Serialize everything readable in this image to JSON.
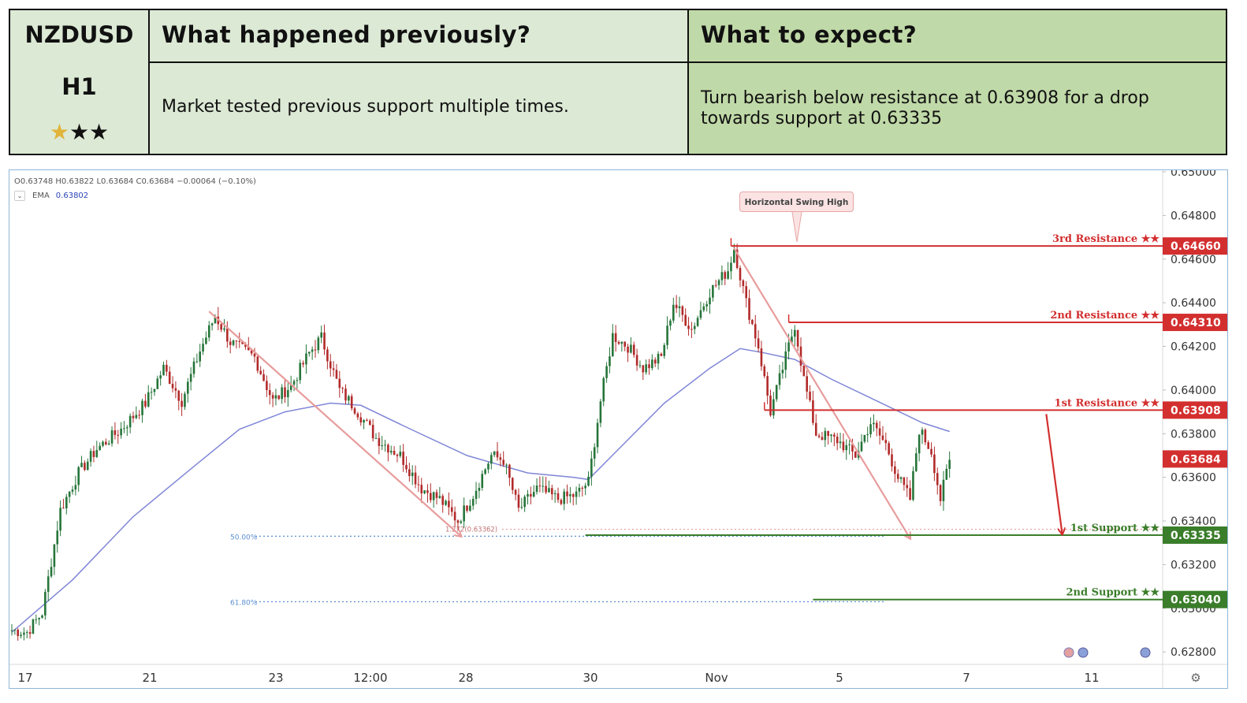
{
  "header": {
    "pair": "NZDUSD",
    "timeframe": "H1",
    "rating": {
      "filled": 1,
      "total": 3
    },
    "previous_title": "What happened previously?",
    "expect_title": "What to expect?",
    "previous_text": "Market tested previous support multiple times.",
    "expect_text": "Turn bearish below resistance at 0.63908 for a drop towards support at 0.63335"
  },
  "legend": {
    "ohlc": "O0.63748 H0.63822 L0.63684 C0.63684 −0.00064 (−0.10%)",
    "ema_label": "EMA",
    "ema_value": "0.63802"
  },
  "annotation": {
    "swing_high": "Horizontal Swing High"
  },
  "colors": {
    "bull": "#26753a",
    "bear": "#b22a2a",
    "ema": "#7f86d6",
    "resistance": "#d32f2f",
    "support": "#3a7d2a",
    "projection": "#e89c9c",
    "fib": "#5b8fd0"
  },
  "chart_data": {
    "type": "candlestick",
    "ylim": [
      0.6275,
      0.65
    ],
    "y_ticks": [
      "0.65000",
      "0.64800",
      "0.64600",
      "0.64400",
      "0.64200",
      "0.64000",
      "0.63800",
      "0.63600",
      "0.63400",
      "0.63200",
      "0.63000",
      "0.62800"
    ],
    "x_ticks": [
      "17",
      "21",
      "23",
      "12:00",
      "28",
      "30",
      "Nov",
      "5",
      "7",
      "11"
    ],
    "x_range_index": [
      0,
      370
    ],
    "last_price": "0.63684",
    "ema_period_values": "EMA (blue line)",
    "levels": [
      {
        "name": "3rd Resistance",
        "stars": "★★",
        "price": 0.6466,
        "label": "0.64660",
        "kind": "resistance",
        "from_index": 237
      },
      {
        "name": "2nd Resistance",
        "stars": "★★",
        "price": 0.6431,
        "label": "0.64310",
        "kind": "resistance",
        "from_index": 256
      },
      {
        "name": "1st Resistance",
        "stars": "★★",
        "price": 0.63908,
        "label": "0.63908",
        "kind": "resistance",
        "from_index": 248
      },
      {
        "name": "1st Support",
        "stars": "★★",
        "price": 0.63335,
        "label": "0.63335",
        "kind": "support",
        "from_index": 189
      },
      {
        "name": "2nd Support",
        "stars": "★★",
        "price": 0.6304,
        "label": "0.63040",
        "kind": "support",
        "from_index": 264
      }
    ],
    "fib_levels": [
      {
        "label": "50.00%",
        "price": 0.6333
      },
      {
        "label": "61.80%",
        "price": 0.6303
      }
    ],
    "fib_ext_label": "1.272(0.63362)",
    "anchors": [
      [
        0,
        0.629
      ],
      [
        5,
        0.6289
      ],
      [
        10,
        0.6298
      ],
      [
        16,
        0.6345
      ],
      [
        22,
        0.6362
      ],
      [
        28,
        0.6373
      ],
      [
        36,
        0.6382
      ],
      [
        44,
        0.6394
      ],
      [
        50,
        0.641
      ],
      [
        56,
        0.6395
      ],
      [
        62,
        0.6418
      ],
      [
        67,
        0.6434
      ],
      [
        72,
        0.6422
      ],
      [
        80,
        0.6415
      ],
      [
        86,
        0.6395
      ],
      [
        92,
        0.6402
      ],
      [
        98,
        0.6417
      ],
      [
        102,
        0.6424
      ],
      [
        108,
        0.64
      ],
      [
        113,
        0.6392
      ],
      [
        120,
        0.6378
      ],
      [
        128,
        0.637
      ],
      [
        135,
        0.6355
      ],
      [
        141,
        0.635
      ],
      [
        147,
        0.634
      ],
      [
        152,
        0.6352
      ],
      [
        158,
        0.637
      ],
      [
        162,
        0.6368
      ],
      [
        167,
        0.6345
      ],
      [
        173,
        0.6355
      ],
      [
        180,
        0.635
      ],
      [
        186,
        0.6352
      ],
      [
        190,
        0.6358
      ],
      [
        194,
        0.6395
      ],
      [
        198,
        0.6425
      ],
      [
        203,
        0.642
      ],
      [
        208,
        0.641
      ],
      [
        214,
        0.6415
      ],
      [
        218,
        0.644
      ],
      [
        224,
        0.6428
      ],
      [
        230,
        0.6445
      ],
      [
        236,
        0.6455
      ],
      [
        238,
        0.6465
      ],
      [
        242,
        0.644
      ],
      [
        246,
        0.642
      ],
      [
        250,
        0.639
      ],
      [
        255,
        0.6415
      ],
      [
        258,
        0.643
      ],
      [
        261,
        0.6405
      ],
      [
        265,
        0.638
      ],
      [
        272,
        0.6377
      ],
      [
        278,
        0.637
      ],
      [
        283,
        0.6385
      ],
      [
        288,
        0.6375
      ],
      [
        292,
        0.636
      ],
      [
        296,
        0.635
      ],
      [
        299,
        0.6382
      ],
      [
        303,
        0.6372
      ],
      [
        306,
        0.635
      ],
      [
        309,
        0.6368
      ]
    ],
    "ema_points": [
      [
        0,
        0.6289
      ],
      [
        20,
        0.6313
      ],
      [
        40,
        0.6342
      ],
      [
        60,
        0.6365
      ],
      [
        75,
        0.6382
      ],
      [
        90,
        0.639
      ],
      [
        105,
        0.6394
      ],
      [
        115,
        0.6393
      ],
      [
        130,
        0.6383
      ],
      [
        150,
        0.637
      ],
      [
        170,
        0.6362
      ],
      [
        185,
        0.636
      ],
      [
        190,
        0.6359
      ],
      [
        200,
        0.6373
      ],
      [
        215,
        0.6394
      ],
      [
        230,
        0.641
      ],
      [
        240,
        0.6419
      ],
      [
        248,
        0.6417
      ],
      [
        258,
        0.6414
      ],
      [
        270,
        0.6405
      ],
      [
        285,
        0.6395
      ],
      [
        300,
        0.6385
      ],
      [
        309,
        0.6381
      ]
    ],
    "projections": [
      {
        "from": [
          65,
          0.6436
        ],
        "to": [
          148,
          0.6333
        ]
      },
      {
        "from": [
          238,
          0.6465
        ],
        "to": [
          296,
          0.6332
        ]
      }
    ],
    "expected_arrow": {
      "from": [
        311,
        0.6389
      ],
      "to": [
        316,
        0.6334
      ]
    }
  }
}
